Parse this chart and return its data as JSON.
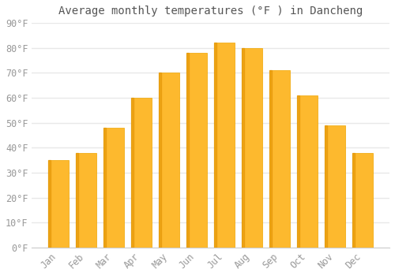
{
  "title": "Average monthly temperatures (°F ) in Dancheng",
  "months": [
    "Jan",
    "Feb",
    "Mar",
    "Apr",
    "May",
    "Jun",
    "Jul",
    "Aug",
    "Sep",
    "Oct",
    "Nov",
    "Dec"
  ],
  "values": [
    35,
    38,
    48,
    60,
    70,
    78,
    82,
    80,
    71,
    61,
    49,
    38
  ],
  "bar_color_face": "#FDB92E",
  "bar_color_edge": "#F0A500",
  "bar_color_shadow": "#E09000",
  "background_color": "#FFFFFF",
  "plot_bg_color": "#FFFFFF",
  "grid_color": "#E8E8E8",
  "title_color": "#555555",
  "label_color": "#999999",
  "ylim": [
    0,
    90
  ],
  "yticks": [
    0,
    10,
    20,
    30,
    40,
    50,
    60,
    70,
    80,
    90
  ],
  "ytick_labels": [
    "0°F",
    "10°F",
    "20°F",
    "30°F",
    "40°F",
    "50°F",
    "60°F",
    "70°F",
    "80°F",
    "90°F"
  ],
  "title_fontsize": 10,
  "tick_fontsize": 8.5,
  "bar_width": 0.75
}
